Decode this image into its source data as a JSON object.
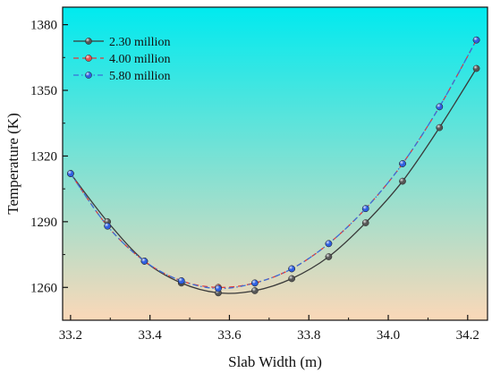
{
  "chart_data": {
    "type": "line",
    "title": "",
    "xlabel": "Slab Width (m)",
    "ylabel": "Temperature (K)",
    "xlim": [
      33.18,
      34.25
    ],
    "ylim": [
      1245,
      1388
    ],
    "xticks": [
      33.2,
      33.4,
      33.6,
      33.8,
      34.0,
      34.2
    ],
    "xtick_labels": [
      "33.2",
      "33.4",
      "33.6",
      "33.8",
      "34.0",
      "34.2"
    ],
    "yticks": [
      1260,
      1290,
      1320,
      1350,
      1380
    ],
    "ytick_labels": [
      "1260",
      "1290",
      "1320",
      "1350",
      "1380"
    ],
    "grid": false,
    "legend_position": "top-left",
    "background_gradient": [
      "#00eaef",
      "#fbd8b8"
    ],
    "x": [
      33.2,
      33.293,
      33.386,
      33.479,
      33.572,
      33.664,
      33.757,
      33.85,
      33.943,
      34.036,
      34.129,
      34.222
    ],
    "series": [
      {
        "name": "2.30 million",
        "values": [
          1312,
          1290,
          1272,
          1262,
          1257.5,
          1258.5,
          1264,
          1274,
          1289.5,
          1308.5,
          1333,
          1360
        ],
        "color": "#3a3a3a",
        "marker_color": "#555555",
        "line_style": "solid"
      },
      {
        "name": "4.00 million",
        "values": [
          1312,
          1288,
          1272,
          1263,
          1260,
          1262,
          1268.5,
          1280,
          1296,
          1316.5,
          1342.5,
          1373
        ],
        "color": "#e03a3a",
        "marker_color": "#e05050",
        "line_style": "dashed"
      },
      {
        "name": "5.80 million",
        "values": [
          1312,
          1288,
          1272,
          1263,
          1259.5,
          1262,
          1268.5,
          1280,
          1296,
          1316.5,
          1342.5,
          1373
        ],
        "color": "#3a6fd8",
        "marker_color": "#2f5fe0",
        "line_style": "dashdot"
      }
    ]
  }
}
